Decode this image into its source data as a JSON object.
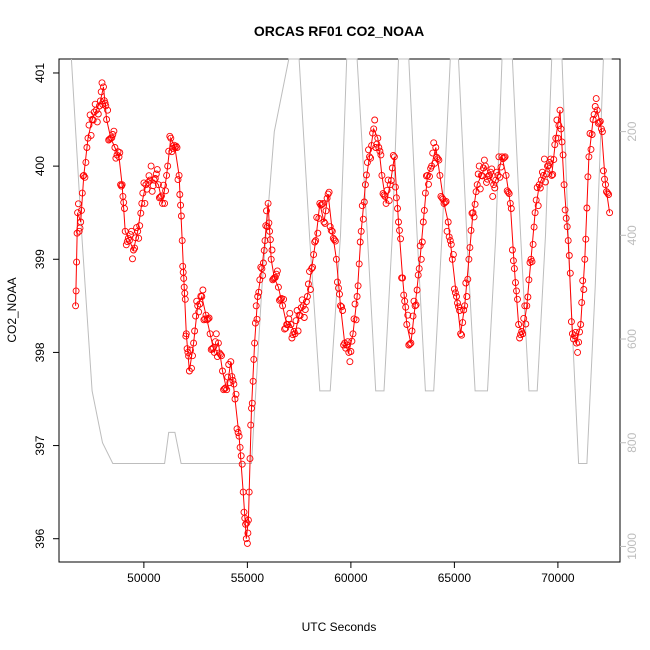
{
  "chart_data": {
    "type": "scatter",
    "title": "ORCAS RF01 CO2_NOAA",
    "xlabel": "UTC Seconds",
    "ylabel": "CO2_NOAA",
    "xlim": [
      45900,
      73000
    ],
    "ylim": [
      395.75,
      401.15
    ],
    "x_ticks": [
      50000,
      55000,
      60000,
      65000,
      70000
    ],
    "x_tick_labels": [
      "50000",
      "55000",
      "60000",
      "65000",
      "70000"
    ],
    "y_ticks": [
      396,
      397,
      398,
      399,
      400,
      401
    ],
    "y_tick_labels": [
      "396",
      "397",
      "398",
      "399",
      "400",
      "401"
    ],
    "y2_ticks": [
      200,
      400,
      600,
      800,
      1000
    ],
    "y2_tick_labels": [
      "200",
      "400",
      "600",
      "800",
      "1000"
    ],
    "y2lim_top_to_bottom": [
      60,
      1030
    ],
    "series": [
      {
        "color": "#ff0000",
        "marker": "open-circle",
        "line": true,
        "points": [
          [
            46700,
            398.5
          ],
          [
            46800,
            399.5
          ],
          [
            46950,
            399.4
          ],
          [
            47100,
            399.9
          ],
          [
            47300,
            400.3
          ],
          [
            47500,
            400.5
          ],
          [
            47700,
            400.6
          ],
          [
            47900,
            400.7
          ],
          [
            48050,
            400.85
          ],
          [
            48200,
            400.5
          ],
          [
            48400,
            400.3
          ],
          [
            48600,
            400.2
          ],
          [
            48800,
            400.1
          ],
          [
            48950,
            399.8
          ],
          [
            49100,
            399.3
          ],
          [
            49300,
            399.2
          ],
          [
            49500,
            399.1
          ],
          [
            49700,
            399.3
          ],
          [
            49900,
            399.6
          ],
          [
            50100,
            399.8
          ],
          [
            50300,
            399.85
          ],
          [
            50500,
            399.85
          ],
          [
            50700,
            399.8
          ],
          [
            50900,
            399.6
          ],
          [
            51100,
            399.9
          ],
          [
            51300,
            400.3
          ],
          [
            51500,
            400.2
          ],
          [
            51700,
            399.9
          ],
          [
            51850,
            399.2
          ],
          [
            51950,
            398.7
          ],
          [
            52050,
            398.2
          ],
          [
            52200,
            397.8
          ],
          [
            52400,
            398.1
          ],
          [
            52600,
            398.5
          ],
          [
            52800,
            398.6
          ],
          [
            53000,
            398.4
          ],
          [
            53200,
            398.2
          ],
          [
            53400,
            398.0
          ],
          [
            53600,
            398.1
          ],
          [
            53800,
            397.8
          ],
          [
            54000,
            397.6
          ],
          [
            54200,
            397.9
          ],
          [
            54400,
            397.5
          ],
          [
            54600,
            397.1
          ],
          [
            54800,
            396.5
          ],
          [
            54950,
            396.0
          ],
          [
            55050,
            396.2
          ],
          [
            55200,
            397.4
          ],
          [
            55350,
            398.1
          ],
          [
            55500,
            398.6
          ],
          [
            55700,
            398.9
          ],
          [
            55850,
            399.2
          ],
          [
            56000,
            399.6
          ],
          [
            56150,
            399.0
          ],
          [
            56300,
            398.8
          ],
          [
            56500,
            398.7
          ],
          [
            56700,
            398.5
          ],
          [
            56900,
            398.3
          ],
          [
            57100,
            398.3
          ],
          [
            57300,
            398.2
          ],
          [
            57500,
            398.4
          ],
          [
            57700,
            398.5
          ],
          [
            57900,
            398.6
          ],
          [
            58100,
            398.9
          ],
          [
            58300,
            399.2
          ],
          [
            58500,
            399.6
          ],
          [
            58700,
            399.4
          ],
          [
            58900,
            399.7
          ],
          [
            59100,
            399.3
          ],
          [
            59300,
            399.0
          ],
          [
            59500,
            398.5
          ],
          [
            59700,
            398.1
          ],
          [
            59900,
            398.0
          ],
          [
            60100,
            398.2
          ],
          [
            60300,
            398.6
          ],
          [
            60500,
            399.3
          ],
          [
            60700,
            399.8
          ],
          [
            60900,
            400.1
          ],
          [
            61100,
            400.4
          ],
          [
            61300,
            400.3
          ],
          [
            61500,
            399.9
          ],
          [
            61700,
            399.6
          ],
          [
            61900,
            399.8
          ],
          [
            62100,
            400.1
          ],
          [
            62300,
            399.4
          ],
          [
            62500,
            398.8
          ],
          [
            62700,
            398.3
          ],
          [
            62900,
            398.1
          ],
          [
            63100,
            398.5
          ],
          [
            63300,
            398.9
          ],
          [
            63500,
            399.4
          ],
          [
            63700,
            399.9
          ],
          [
            63900,
            400.0
          ],
          [
            64100,
            400.2
          ],
          [
            64300,
            399.9
          ],
          [
            64500,
            399.6
          ],
          [
            64700,
            399.4
          ],
          [
            64900,
            399.0
          ],
          [
            65100,
            398.6
          ],
          [
            65300,
            398.2
          ],
          [
            65500,
            398.5
          ],
          [
            65700,
            399.0
          ],
          [
            65900,
            399.5
          ],
          [
            66100,
            399.8
          ],
          [
            66300,
            399.9
          ],
          [
            66500,
            400.0
          ],
          [
            66700,
            399.9
          ],
          [
            66900,
            399.8
          ],
          [
            67100,
            399.9
          ],
          [
            67300,
            400.1
          ],
          [
            67500,
            399.9
          ],
          [
            67700,
            399.6
          ],
          [
            67900,
            398.9
          ],
          [
            68100,
            398.3
          ],
          [
            68300,
            398.2
          ],
          [
            68500,
            398.5
          ],
          [
            68700,
            399.0
          ],
          [
            68900,
            399.5
          ],
          [
            69100,
            399.8
          ],
          [
            69300,
            399.9
          ],
          [
            69500,
            400.0
          ],
          [
            69700,
            399.9
          ],
          [
            69900,
            400.3
          ],
          [
            70100,
            400.6
          ],
          [
            70300,
            399.8
          ],
          [
            70500,
            399.2
          ],
          [
            70700,
            398.2
          ],
          [
            70900,
            398.1
          ],
          [
            71100,
            398.3
          ],
          [
            71300,
            399.0
          ],
          [
            71500,
            400.1
          ],
          [
            71700,
            400.5
          ],
          [
            71900,
            400.6
          ],
          [
            72100,
            400.4
          ],
          [
            72300,
            399.8
          ],
          [
            72500,
            399.5
          ]
        ]
      },
      {
        "color": "#bdbdbd",
        "marker": "none",
        "line": true,
        "axis": "right",
        "points": [
          [
            46500,
            60
          ],
          [
            47000,
            400
          ],
          [
            47500,
            700
          ],
          [
            48000,
            800
          ],
          [
            48500,
            840
          ],
          [
            49000,
            840
          ],
          [
            50000,
            840
          ],
          [
            51000,
            840
          ],
          [
            51200,
            780
          ],
          [
            51500,
            780
          ],
          [
            51800,
            840
          ],
          [
            52500,
            840
          ],
          [
            53500,
            840
          ],
          [
            54500,
            840
          ],
          [
            55200,
            840
          ],
          [
            55700,
            500
          ],
          [
            56300,
            200
          ],
          [
            57000,
            60
          ],
          [
            57500,
            60
          ],
          [
            58000,
            400
          ],
          [
            58500,
            700
          ],
          [
            59000,
            700
          ],
          [
            59500,
            400
          ],
          [
            59800,
            60
          ],
          [
            60300,
            60
          ],
          [
            60800,
            400
          ],
          [
            61200,
            700
          ],
          [
            61600,
            700
          ],
          [
            62000,
            400
          ],
          [
            62300,
            60
          ],
          [
            62800,
            60
          ],
          [
            63200,
            400
          ],
          [
            63600,
            700
          ],
          [
            64000,
            700
          ],
          [
            64400,
            400
          ],
          [
            64800,
            60
          ],
          [
            65200,
            60
          ],
          [
            65600,
            400
          ],
          [
            66000,
            700
          ],
          [
            66600,
            700
          ],
          [
            67000,
            400
          ],
          [
            67300,
            60
          ],
          [
            67800,
            60
          ],
          [
            68200,
            400
          ],
          [
            68600,
            700
          ],
          [
            69000,
            700
          ],
          [
            69400,
            400
          ],
          [
            69700,
            60
          ],
          [
            70200,
            60
          ],
          [
            70600,
            500
          ],
          [
            71000,
            840
          ],
          [
            71400,
            840
          ],
          [
            71800,
            500
          ],
          [
            72200,
            60
          ],
          [
            72600,
            60
          ]
        ]
      }
    ]
  }
}
